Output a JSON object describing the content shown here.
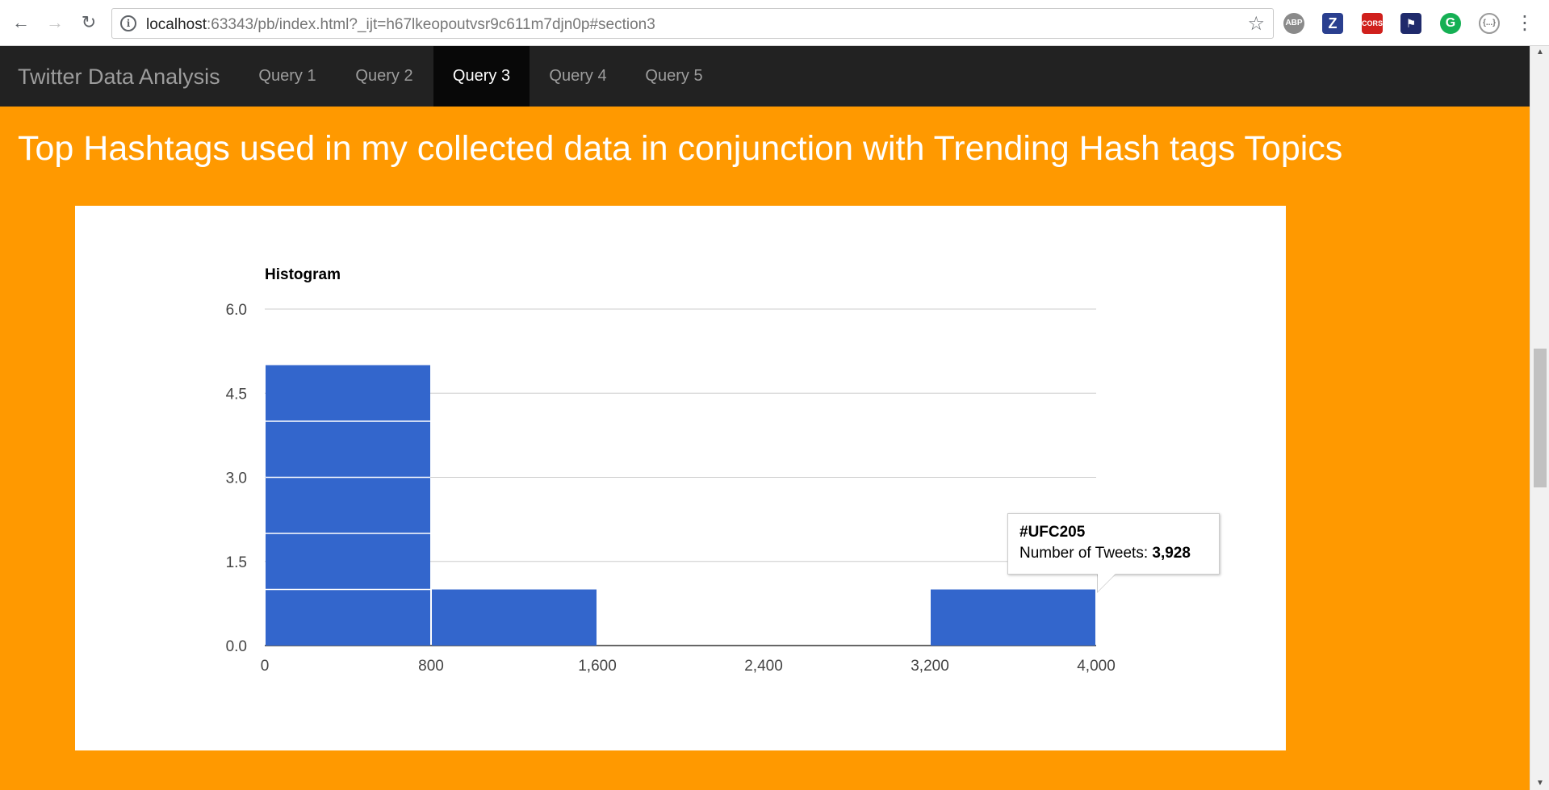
{
  "browser": {
    "url_host": "localhost",
    "url_rest": ":63343/pb/index.html?_ijt=h67lkeopoutvsr9c611m7djn0p#section3",
    "extensions": [
      {
        "name": "adblock-plus-icon",
        "label": "ABP"
      },
      {
        "name": "zotero-icon",
        "label": "Z"
      },
      {
        "name": "cors-icon",
        "label": "CORS"
      },
      {
        "name": "flag-extension-icon",
        "label": ""
      },
      {
        "name": "grammarly-icon",
        "label": "G"
      },
      {
        "name": "json-viewer-icon",
        "label": "{...}"
      }
    ]
  },
  "navbar": {
    "brand": "Twitter Data Analysis",
    "items": [
      {
        "label": "Query 1",
        "active": false
      },
      {
        "label": "Query 2",
        "active": false
      },
      {
        "label": "Query 3",
        "active": true
      },
      {
        "label": "Query 4",
        "active": false
      },
      {
        "label": "Query 5",
        "active": false
      }
    ]
  },
  "section": {
    "heading": "Top Hashtags used in my collected data in conjunction with Trending Hash tags Topics"
  },
  "colors": {
    "page_background": "#ff9900",
    "navbar_background": "#222222",
    "bar_fill": "#3366cc"
  },
  "chart_data": {
    "type": "bar",
    "title": "Histogram",
    "xlabel": "",
    "ylabel": "",
    "x_ticks": [
      "0",
      "800",
      "1,600",
      "2,400",
      "3,200",
      "4,000"
    ],
    "y_ticks": [
      "0.0",
      "1.5",
      "3.0",
      "4.5",
      "6.0"
    ],
    "xlim": [
      0,
      4000
    ],
    "ylim": [
      0,
      6
    ],
    "bins": [
      {
        "x0": 0,
        "x1": 800,
        "count": 5
      },
      {
        "x0": 800,
        "x1": 1600,
        "count": 1
      },
      {
        "x0": 3200,
        "x1": 4000,
        "count": 1
      }
    ],
    "grid": true,
    "legend": "none"
  },
  "tooltip": {
    "title": "#UFC205",
    "label": "Number of Tweets: ",
    "value": "3,928"
  }
}
